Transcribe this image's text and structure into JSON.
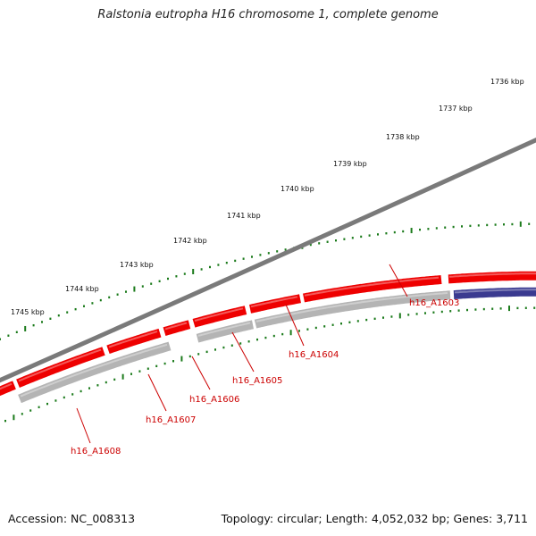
{
  "title": "Ralstonia eutropha H16 chromosome 1, complete genome",
  "accession": "Accession: NC_008313",
  "summary": "Topology: circular; Length: 4,052,032 bp; Genes: 3,711",
  "colors": {
    "backbone": "#777777",
    "forward_gene": "#ee0000",
    "reverse_gene_other": "#3a3a90",
    "reverse_gene_grey": "#b4b4b4",
    "tick": "#1a7a1a",
    "gene_label": "#cc0000"
  },
  "scale_labels": [
    "1736 kbp",
    "1737 kbp",
    "1738 kbp",
    "1739 kbp",
    "1740 kbp",
    "1741 kbp",
    "1742 kbp",
    "1743 kbp",
    "1744 kbp",
    "1745 kbp"
  ],
  "gene_labels": [
    "h16_A1603",
    "h16_A1604",
    "h16_A1605",
    "h16_A1606",
    "h16_A1607",
    "h16_A1608"
  ]
}
